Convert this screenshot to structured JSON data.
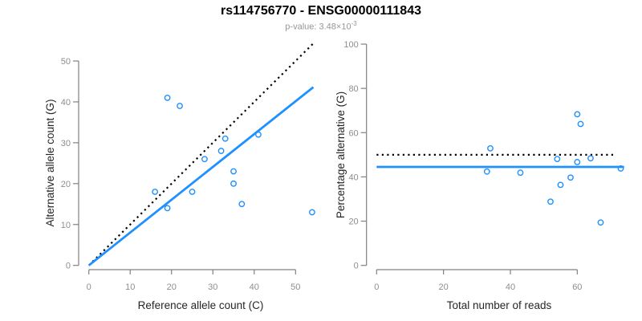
{
  "header": {
    "title": "rs114756770 - ENSG00000111843",
    "pvalue_text": "p-value: 3.48×10",
    "pvalue_exponent": "-3"
  },
  "palette": {
    "point_blue": "#1E90FF",
    "fit_line_blue": "#1E90FF",
    "reference_line_black": "#000000",
    "axis_line": "#808080",
    "tick_label": "#8e8e8e",
    "axis_title": "#262626",
    "title": "#000000",
    "subtitle": "#969696"
  },
  "chart_data": [
    {
      "type": "scatter",
      "panel": "left",
      "xlabel": "Reference allele count (C)",
      "ylabel": "Alternative allele count (G)",
      "xticks": [
        0,
        10,
        20,
        30,
        40,
        50
      ],
      "yticks": [
        0,
        10,
        20,
        30,
        40,
        50
      ],
      "xlim": [
        0,
        50
      ],
      "ylim": [
        0,
        50
      ],
      "grid": false,
      "legend": "none",
      "points": [
        [
          19,
          41
        ],
        [
          22,
          39
        ],
        [
          41,
          32
        ],
        [
          33,
          31
        ],
        [
          32,
          28
        ],
        [
          28,
          26
        ],
        [
          35,
          23
        ],
        [
          35,
          20
        ],
        [
          16,
          18
        ],
        [
          25,
          18
        ],
        [
          37,
          15
        ],
        [
          19,
          14
        ],
        [
          54,
          13
        ]
      ],
      "lines": [
        {
          "name": "identity-line",
          "style": "dotted",
          "color_key": "reference_line_black",
          "x1": 0,
          "y1": 0,
          "x2": 54.2,
          "y2": 54.2
        },
        {
          "name": "fit-line",
          "style": "solid",
          "color_key": "fit_line_blue",
          "x1": 0,
          "y1": 0,
          "x2": 54.3,
          "y2": 43.6
        }
      ]
    },
    {
      "type": "scatter",
      "panel": "right",
      "xlabel": "Total number of reads",
      "ylabel": "Percentage alternative (G)",
      "xticks": [
        0,
        20,
        40,
        60
      ],
      "yticks": [
        0,
        20,
        40,
        60,
        80,
        100
      ],
      "xlim": [
        0,
        74
      ],
      "ylim": [
        0,
        100
      ],
      "grid": false,
      "legend": "none",
      "points": [
        [
          60,
          68.3
        ],
        [
          61,
          63.9
        ],
        [
          73,
          43.8
        ],
        [
          64,
          48.4
        ],
        [
          60,
          46.7
        ],
        [
          54,
          48.1
        ],
        [
          58,
          39.7
        ],
        [
          55,
          36.4
        ],
        [
          34,
          52.9
        ],
        [
          43,
          41.9
        ],
        [
          52,
          28.8
        ],
        [
          33,
          42.4
        ],
        [
          67,
          19.4
        ]
      ],
      "lines": [
        {
          "name": "expected-50pct-line",
          "style": "dotted",
          "color_key": "reference_line_black",
          "x1": 0,
          "y1": 50,
          "x2": 71.5,
          "y2": 50
        },
        {
          "name": "observed-pct-line",
          "style": "solid",
          "color_key": "fit_line_blue",
          "x1": 0,
          "y1": 44.5,
          "x2": 74,
          "y2": 44.5
        }
      ]
    }
  ]
}
